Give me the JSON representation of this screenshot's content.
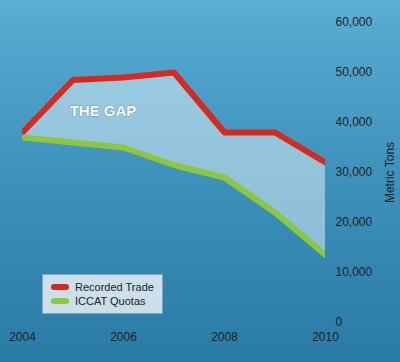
{
  "chart_data": {
    "type": "line",
    "x": [
      2004,
      2005,
      2006,
      2007,
      2008,
      2009,
      2010
    ],
    "series": [
      {
        "name": "Recorded Trade",
        "color": "#d42a1f",
        "values": [
          38000,
          48500,
          49000,
          50000,
          38000,
          38000,
          32000
        ]
      },
      {
        "name": "ICCAT Quotas",
        "color": "#8dc63f",
        "values": [
          37000,
          36000,
          35000,
          31500,
          29000,
          22000,
          13500
        ]
      }
    ],
    "annotations": [
      "THE GAP"
    ],
    "ylabel": "Metric Tons",
    "xlim": [
      2004,
      2010
    ],
    "xticks": [
      2004,
      2006,
      2008,
      2010
    ],
    "ylim": [
      0,
      60000
    ],
    "yticks": [
      0,
      {
        "value": 10000,
        "label": "10,000"
      },
      {
        "value": 20000,
        "label": "20,000"
      },
      {
        "value": 30000,
        "label": "30,000"
      },
      {
        "value": 40000,
        "label": "40,000"
      },
      {
        "value": 50000,
        "label": "50,000"
      },
      {
        "value": 60000,
        "label": "60,000"
      }
    ],
    "grid": false,
    "legend": "lower left"
  }
}
